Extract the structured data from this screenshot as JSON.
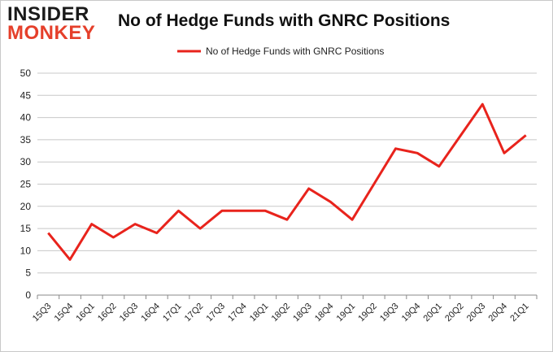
{
  "brand": {
    "line1": "INSIDER",
    "line2": "MONKEY",
    "colors": {
      "dark": "#1a1a1a",
      "accent": "#e53f2a"
    }
  },
  "chart_data": {
    "type": "line",
    "title": "No of Hedge Funds with GNRC Positions",
    "xlabel": "",
    "ylabel": "",
    "ylim": [
      0,
      50
    ],
    "yticks": [
      0,
      5,
      10,
      15,
      20,
      25,
      30,
      35,
      40,
      45,
      50
    ],
    "grid": true,
    "legend_position": "top-center",
    "categories": [
      "15Q3",
      "15Q4",
      "16Q1",
      "16Q2",
      "16Q3",
      "16Q4",
      "17Q1",
      "17Q2",
      "17Q3",
      "17Q4",
      "18Q1",
      "18Q2",
      "18Q3",
      "18Q4",
      "19Q1",
      "19Q2",
      "19Q3",
      "19Q4",
      "20Q1",
      "20Q2",
      "20Q3",
      "20Q4",
      "21Q1"
    ],
    "series": [
      {
        "name": "No of Hedge Funds with GNRC Positions",
        "color": "#e8231c",
        "values": [
          14,
          8,
          16,
          13,
          16,
          14,
          19,
          15,
          19,
          19,
          19,
          17,
          24,
          21,
          17,
          25,
          33,
          32,
          29,
          36,
          43,
          32,
          36
        ]
      }
    ]
  }
}
